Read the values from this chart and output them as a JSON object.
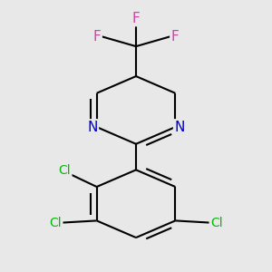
{
  "background_color": "#e8e8e8",
  "bond_color": "#000000",
  "bond_width": 1.5,
  "N_color": "#0000cc",
  "F_color": "#cc44aa",
  "Cl_color": "#00bb00",
  "figsize": [
    3.0,
    3.0
  ],
  "dpi": 100,
  "xlim": [
    -2.5,
    2.5
  ],
  "ylim": [
    -3.5,
    3.2
  ]
}
